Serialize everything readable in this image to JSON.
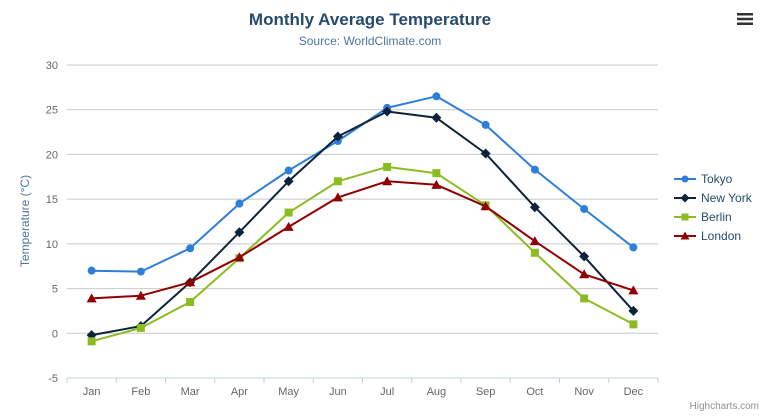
{
  "chart": {
    "title": "Monthly Average Temperature",
    "subtitle": "Source: WorldClimate.com",
    "credits": "Highcharts.com",
    "context_menu_icon": "hamburger-icon"
  },
  "chart_data": {
    "type": "line",
    "title": "Monthly Average Temperature",
    "subtitle": "Source: WorldClimate.com",
    "categories": [
      "Jan",
      "Feb",
      "Mar",
      "Apr",
      "May",
      "Jun",
      "Jul",
      "Aug",
      "Sep",
      "Oct",
      "Nov",
      "Dec"
    ],
    "xlabel": "",
    "ylabel": "Temperature (°C)",
    "ylim": [
      -5,
      30
    ],
    "ytick_interval": 5,
    "grid": true,
    "legend_position": "right",
    "series": [
      {
        "name": "Tokyo",
        "color": "#2f7ed8",
        "marker": "circle",
        "values": [
          7.0,
          6.9,
          9.5,
          14.5,
          18.2,
          21.5,
          25.2,
          26.5,
          23.3,
          18.3,
          13.9,
          9.6
        ]
      },
      {
        "name": "New York",
        "color": "#0d233a",
        "marker": "diamond",
        "values": [
          -0.2,
          0.8,
          5.7,
          11.3,
          17.0,
          22.0,
          24.8,
          24.1,
          20.1,
          14.1,
          8.6,
          2.5
        ]
      },
      {
        "name": "Berlin",
        "color": "#8bbc21",
        "marker": "square",
        "values": [
          -0.9,
          0.6,
          3.5,
          8.4,
          13.5,
          17.0,
          18.6,
          17.9,
          14.3,
          9.0,
          3.9,
          1.0
        ]
      },
      {
        "name": "London",
        "color": "#910000",
        "marker": "triangle",
        "values": [
          3.9,
          4.2,
          5.7,
          8.5,
          11.9,
          15.2,
          17.0,
          16.6,
          14.2,
          10.3,
          6.6,
          4.8
        ]
      }
    ]
  }
}
